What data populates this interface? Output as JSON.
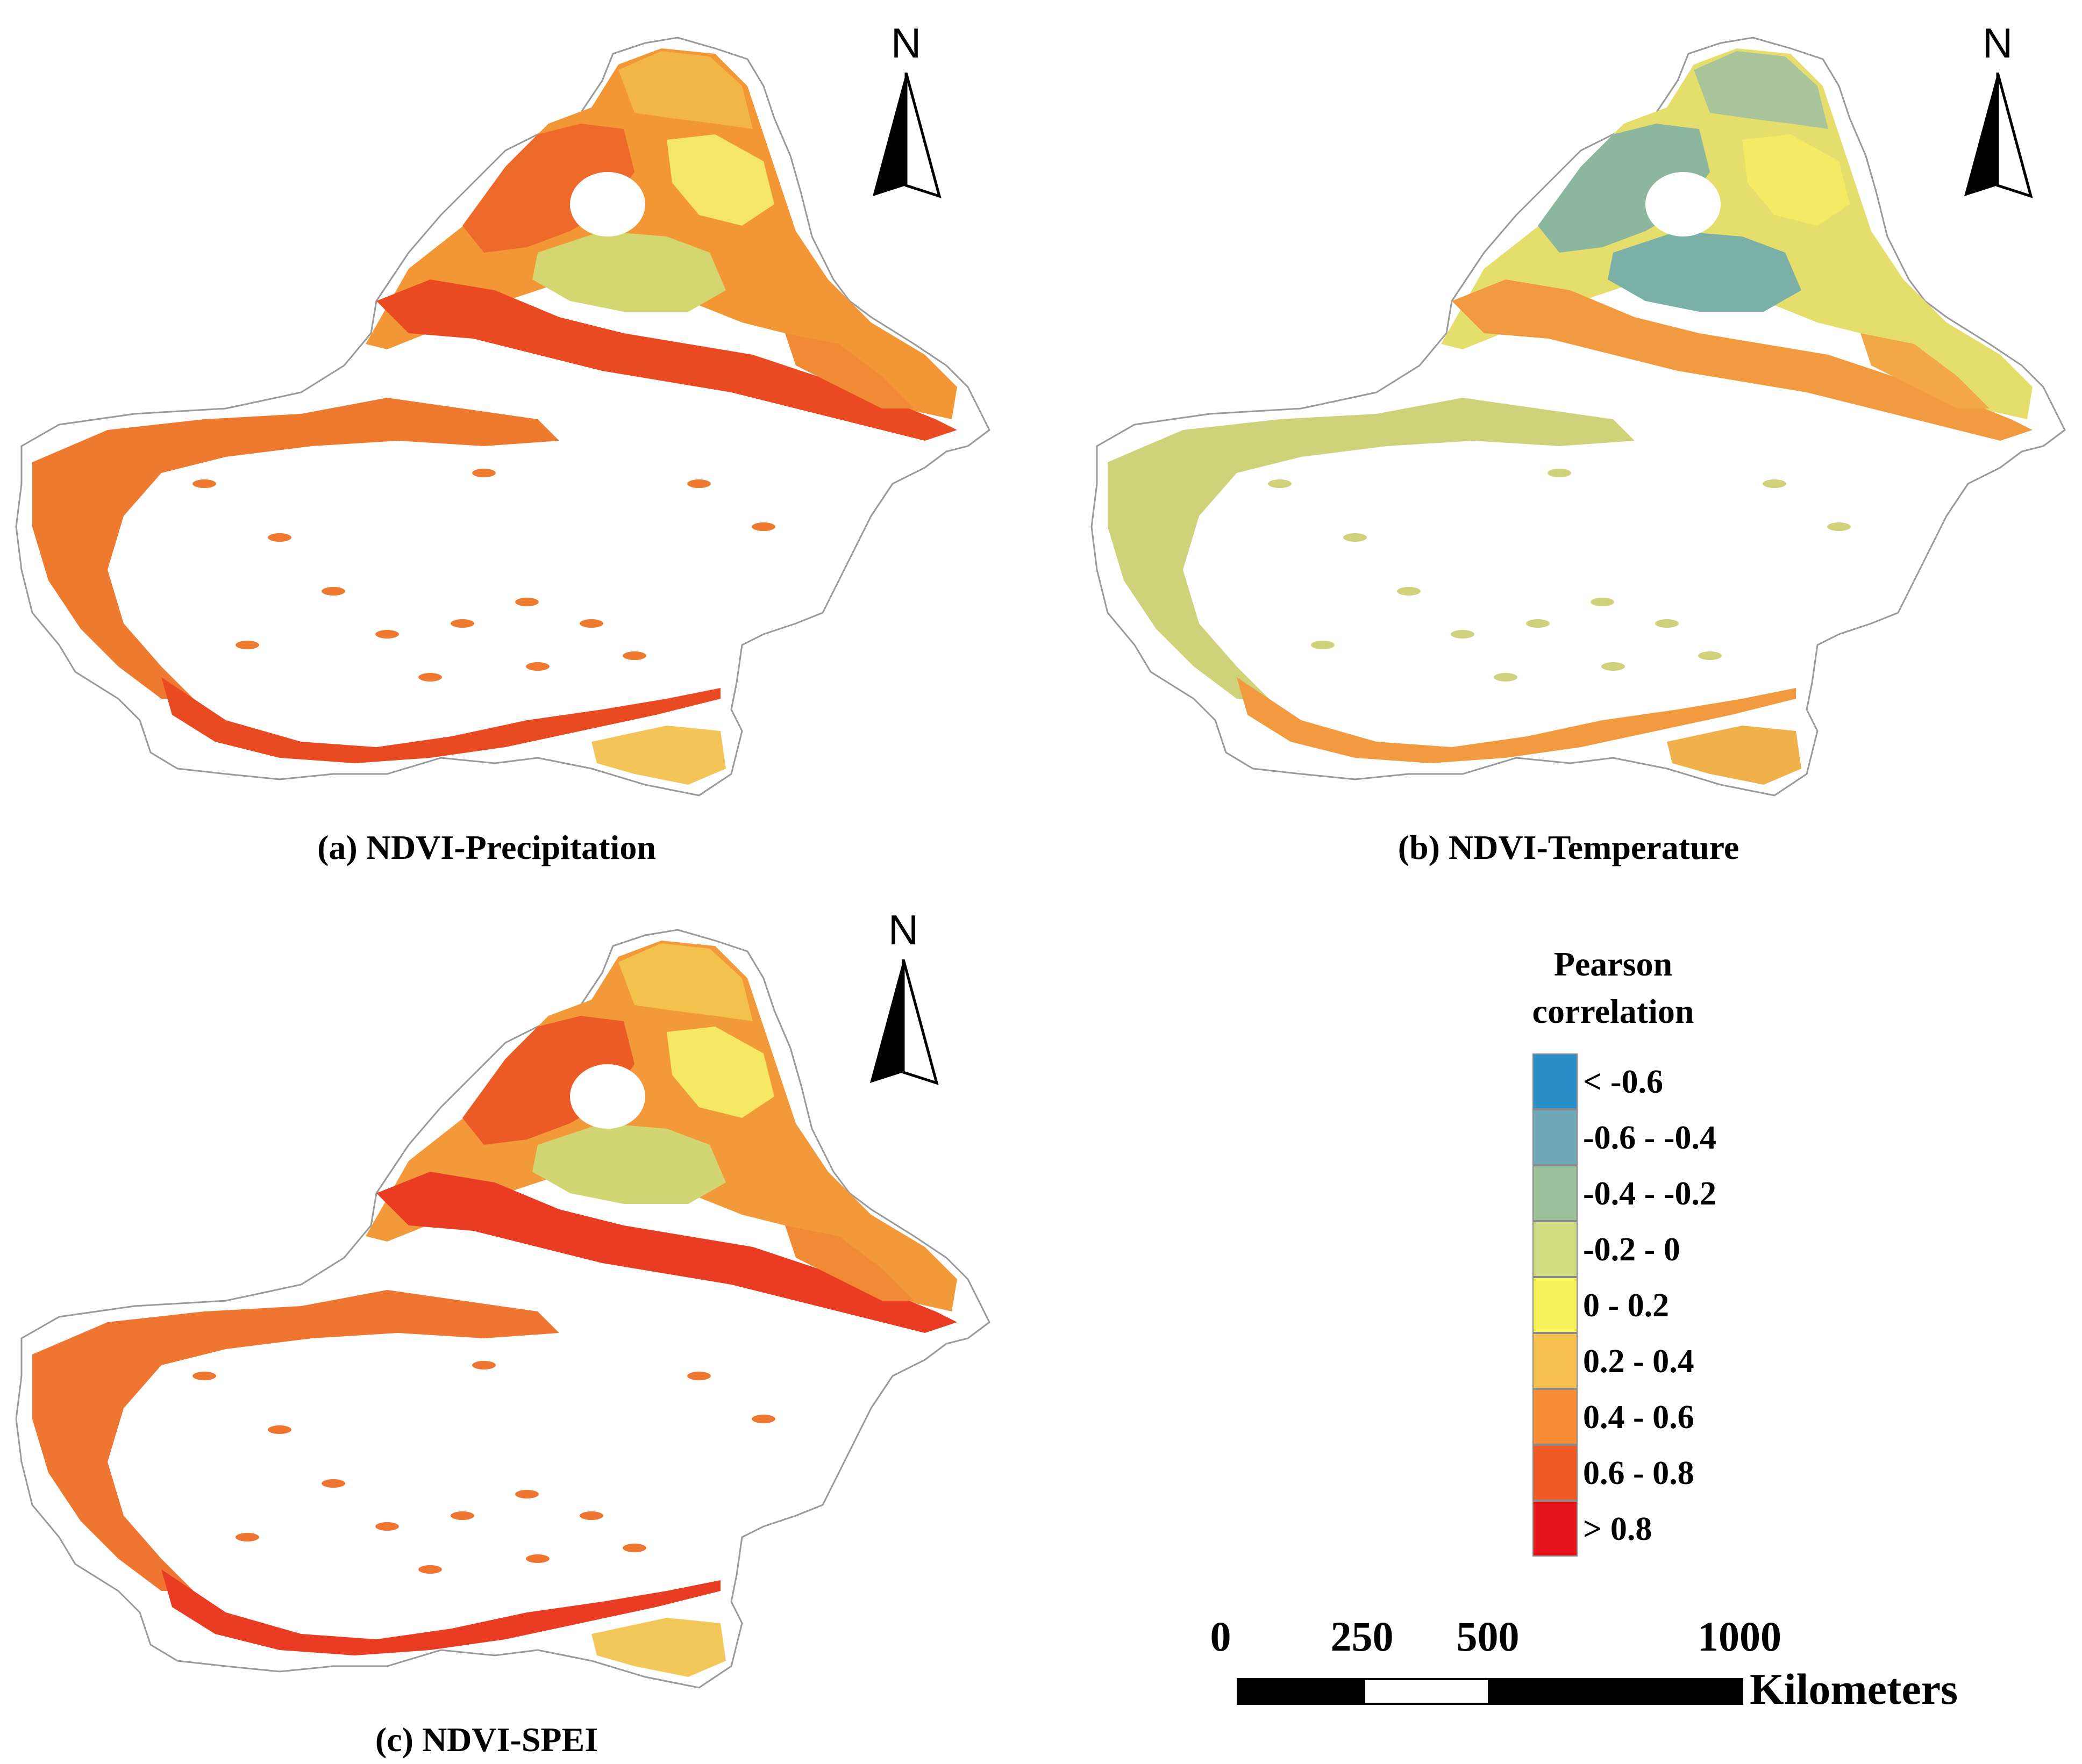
{
  "panels": [
    {
      "id": "a",
      "caption": "(a) NDVI-Precipitation",
      "colors": {
        "base": "#f29636",
        "upper": "#ee6a2a",
        "band": "#ea4a22",
        "north": "#f2b648",
        "east": "#f08a34",
        "green": "#d4d770",
        "yellow": "#f3e668",
        "rim": "#ee7a30",
        "south": "#f3c458"
      }
    },
    {
      "id": "b",
      "caption": "(b) NDVI-Temperature",
      "colors": {
        "base": "#e6de6c",
        "upper": "#8ab79e",
        "band": "#f29a40",
        "north": "#a9c39a",
        "east": "#f2a846",
        "green": "#7ab0a6",
        "yellow": "#f5ea64",
        "rim": "#cfd27a",
        "south": "#f0b04a"
      }
    },
    {
      "id": "c",
      "caption": "(c) NDVI-SPEI",
      "colors": {
        "base": "#f29a3a",
        "upper": "#ec5a26",
        "band": "#ea3c22",
        "north": "#f2c24c",
        "east": "#f08a34",
        "green": "#d2d672",
        "yellow": "#f4e864",
        "rim": "#ee7630",
        "south": "#f3c85a"
      }
    }
  ],
  "north_label": "N",
  "legend": {
    "title": "Pearson correlation",
    "items": [
      {
        "label": "< -0.6",
        "color": "#2b8fc7"
      },
      {
        "label": "-0.6 - -0.4",
        "color": "#6fa8b6"
      },
      {
        "label": "-0.4 - -0.2",
        "color": "#9cc19a"
      },
      {
        "label": "-0.2 - 0",
        "color": "#cfdc82"
      },
      {
        "label": "0 - 0.2",
        "color": "#f6f25a"
      },
      {
        "label": "0.2 - 0.4",
        "color": "#f7c14f"
      },
      {
        "label": "0.4 - 0.6",
        "color": "#f68d35"
      },
      {
        "label": "0.6 - 0.8",
        "color": "#ef5a24"
      },
      {
        "label": "> 0.8",
        "color": "#e4161b"
      }
    ]
  },
  "scale_bar": {
    "ticks": [
      "0",
      "250",
      "500",
      "1000"
    ],
    "unit": "Kilometers"
  }
}
